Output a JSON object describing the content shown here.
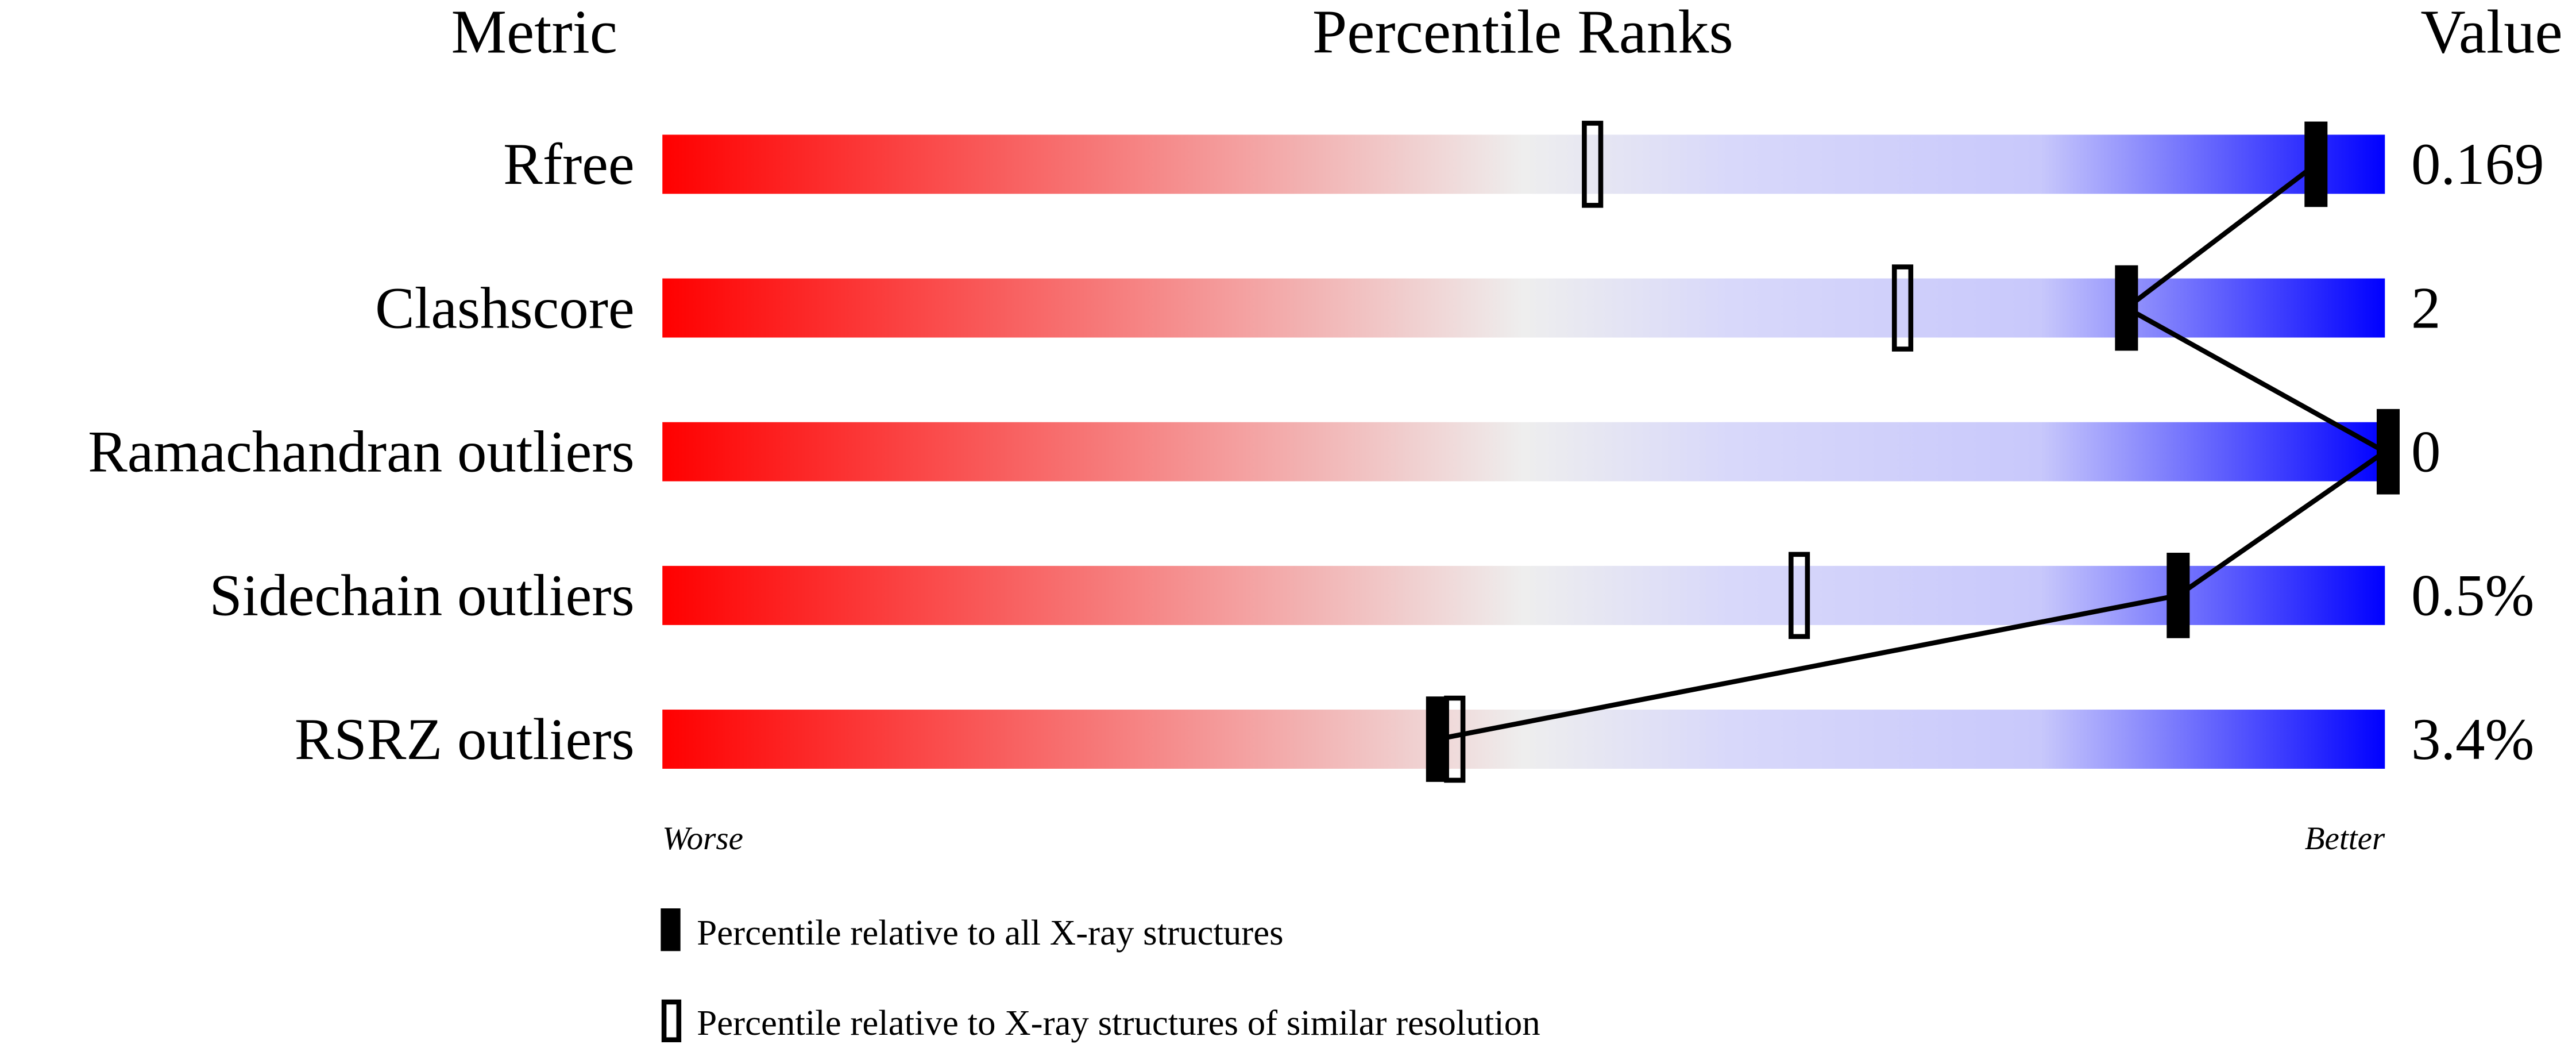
{
  "chart_data": {
    "type": "bar",
    "headers": {
      "metric": "Metric",
      "ranks": "Percentile Ranks",
      "value": "Value"
    },
    "axis": {
      "left_label": "Worse",
      "right_label": "Better",
      "range": [
        0,
        100
      ]
    },
    "gradient_colors": {
      "worse": "#ff0000",
      "middle": "#eeeeee",
      "better": "#0000ff"
    },
    "metrics": [
      {
        "name": "Rfree",
        "value": "0.169",
        "percentile_all": 96,
        "percentile_similar": 54
      },
      {
        "name": "Clashscore",
        "value": "2",
        "percentile_all": 85,
        "percentile_similar": 72
      },
      {
        "name": "Ramachandran outliers",
        "value": "0",
        "percentile_all": 100,
        "percentile_similar": null
      },
      {
        "name": "Sidechain outliers",
        "value": "0.5%",
        "percentile_all": 88,
        "percentile_similar": 66
      },
      {
        "name": "RSRZ outliers",
        "value": "3.4%",
        "percentile_all": 45,
        "percentile_similar": 46
      }
    ],
    "legend": [
      {
        "marker": "filled",
        "label": "Percentile relative to all X-ray structures"
      },
      {
        "marker": "open",
        "label": "Percentile relative to X-ray structures of similar resolution"
      }
    ]
  }
}
